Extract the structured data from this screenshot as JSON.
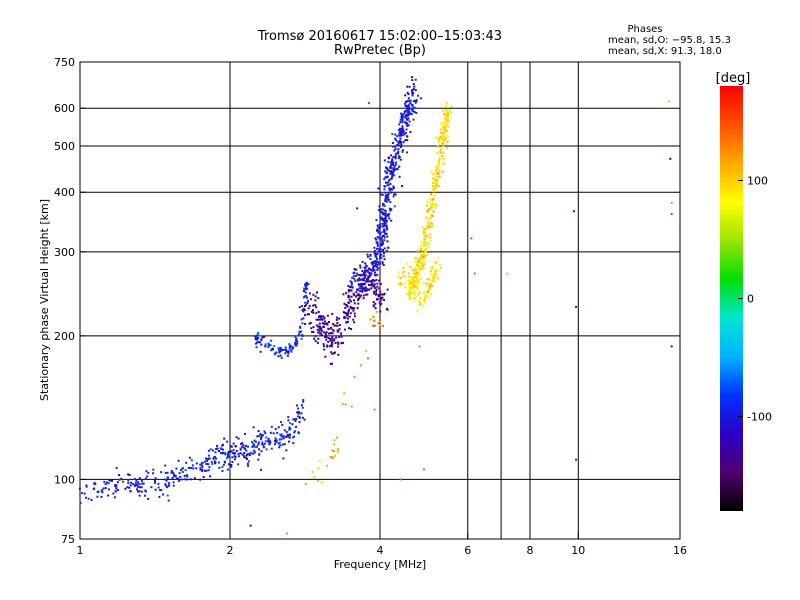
{
  "chart_data": {
    "type": "scatter",
    "title_line1": "Tromsø 20160617 15:02:00–15:03:43",
    "title_line2": "RwPretec (Bp)",
    "stats": {
      "heading": "Phases",
      "line_o": "mean, sd,O: −95.8, 15.3",
      "line_x": "mean, sd,X:  91.3, 18.0"
    },
    "xlabel": "Frequency [MHz]",
    "ylabel": "Stationary phase Virtual Height [km]",
    "x_scale": "log",
    "y_scale": "log",
    "xlim": [
      1,
      16
    ],
    "ylim": [
      75,
      750
    ],
    "x_ticks": [
      {
        "v": 1,
        "label": "1"
      },
      {
        "v": 2,
        "label": "2"
      },
      {
        "v": 4,
        "label": "4"
      },
      {
        "v": 6,
        "label": "6"
      },
      {
        "v": 8,
        "label": "8"
      },
      {
        "v": 10,
        "label": "10"
      },
      {
        "v": 16,
        "label": "16"
      }
    ],
    "x_grid": [
      1,
      2,
      4,
      6,
      7,
      8,
      10,
      16
    ],
    "y_ticks": [
      {
        "v": 75,
        "label": "75"
      },
      {
        "v": 100,
        "label": "100"
      },
      {
        "v": 200,
        "label": "200"
      },
      {
        "v": 300,
        "label": "300"
      },
      {
        "v": 400,
        "label": "400"
      },
      {
        "v": 500,
        "label": "500"
      },
      {
        "v": 600,
        "label": "600"
      },
      {
        "v": 750,
        "label": "750"
      }
    ],
    "y_grid": [
      100,
      200,
      300,
      400,
      500,
      600
    ],
    "grid": true,
    "colorbar": {
      "label": "[deg]",
      "range": [
        -180,
        180
      ],
      "ticks": [
        {
          "v": 100,
          "label": "100"
        },
        {
          "v": 0,
          "label": "0"
        },
        {
          "v": -100,
          "label": "-100"
        }
      ],
      "stops": [
        "#000000",
        "#500070",
        "#2a00c8",
        "#0033ff",
        "#00b4ff",
        "#00e6d0",
        "#00e000",
        "#9ae600",
        "#ffff00",
        "#ffa800",
        "#ff5000",
        "#ff0000"
      ]
    },
    "series": [
      {
        "segments": [
          [
            1.0,
            96,
            -95
          ],
          [
            1.1,
            95,
            -95
          ],
          [
            1.2,
            96,
            -95
          ],
          [
            1.3,
            97,
            -95
          ],
          [
            1.4,
            98,
            -95
          ],
          [
            1.5,
            100,
            -95
          ],
          [
            1.6,
            103,
            -95
          ],
          [
            1.7,
            106,
            -95
          ],
          [
            1.8,
            108,
            -95
          ],
          [
            1.9,
            112,
            -95
          ],
          [
            2.0,
            113,
            -95
          ],
          [
            2.1,
            114,
            -95
          ],
          [
            2.2,
            116,
            -95
          ],
          [
            2.3,
            119,
            -95
          ],
          [
            2.4,
            120,
            -95
          ],
          [
            2.5,
            121,
            -95
          ],
          [
            2.6,
            124,
            -95
          ],
          [
            2.7,
            130,
            -95
          ],
          [
            2.8,
            145,
            -95
          ]
        ],
        "spread": 0.035,
        "count": 420
      },
      {
        "segments": [
          [
            2.25,
            200,
            -92
          ],
          [
            2.3,
            196,
            -92
          ],
          [
            2.4,
            190,
            -92
          ],
          [
            2.5,
            186,
            -92
          ],
          [
            2.6,
            186,
            -92
          ],
          [
            2.7,
            191,
            -92
          ],
          [
            2.8,
            210,
            -92
          ],
          [
            2.83,
            240,
            -92
          ],
          [
            2.85,
            260,
            -92
          ]
        ],
        "spread": 0.015,
        "count": 120
      },
      {
        "segments": [
          [
            2.85,
            230,
            -130
          ],
          [
            2.95,
            220,
            -130
          ],
          [
            3.05,
            205,
            -130
          ],
          [
            3.15,
            200,
            -130
          ],
          [
            3.25,
            195,
            -130
          ],
          [
            3.35,
            210,
            -130
          ],
          [
            3.45,
            230,
            -130
          ],
          [
            3.55,
            240,
            -130
          ],
          [
            3.65,
            250,
            -130
          ],
          [
            3.75,
            265,
            -130
          ],
          [
            3.85,
            260,
            -130
          ],
          [
            3.95,
            240,
            -130
          ],
          [
            4.05,
            230,
            -130
          ]
        ],
        "spread": 0.045,
        "count": 330
      },
      {
        "segments": [
          [
            3.5,
            250,
            -100
          ],
          [
            3.7,
            265,
            -100
          ],
          [
            3.9,
            280,
            -100
          ],
          [
            4.0,
            300,
            -100
          ],
          [
            4.05,
            330,
            -100
          ],
          [
            4.1,
            360,
            -100
          ],
          [
            4.15,
            400,
            -100
          ],
          [
            4.2,
            440,
            -100
          ],
          [
            4.3,
            480,
            -100
          ],
          [
            4.4,
            520,
            -100
          ],
          [
            4.5,
            560,
            -100
          ],
          [
            4.6,
            610,
            -100
          ],
          [
            4.7,
            650,
            -100
          ]
        ],
        "spread": 0.04,
        "count": 520
      },
      {
        "segments": [
          [
            4.6,
            250,
            95
          ],
          [
            4.7,
            265,
            95
          ],
          [
            4.8,
            280,
            95
          ],
          [
            4.9,
            300,
            95
          ],
          [
            5.0,
            340,
            95
          ],
          [
            5.1,
            380,
            95
          ],
          [
            5.2,
            440,
            95
          ],
          [
            5.3,
            500,
            95
          ],
          [
            5.4,
            560,
            95
          ],
          [
            5.5,
            600,
            95
          ]
        ],
        "spread": 0.03,
        "count": 320
      },
      {
        "segments": [
          [
            4.4,
            270,
            88
          ],
          [
            4.6,
            250,
            88
          ],
          [
            4.8,
            240,
            88
          ],
          [
            5.0,
            250,
            88
          ],
          [
            5.1,
            265,
            88
          ],
          [
            5.2,
            270,
            88
          ]
        ],
        "spread": 0.03,
        "count": 110
      },
      {
        "segments": [
          [
            3.9,
            210,
            120
          ],
          [
            4.0,
            215,
            120
          ],
          [
            3.2,
            115,
            110
          ],
          [
            3.3,
            117,
            110
          ],
          [
            2.9,
            98,
            130
          ]
        ],
        "spread": 0.03,
        "count": 40
      }
    ],
    "outliers": [
      [
        6.1,
        320,
        150
      ],
      [
        6.2,
        270,
        140
      ],
      [
        7.2,
        270,
        110
      ],
      [
        9.8,
        365,
        -100
      ],
      [
        9.9,
        230,
        -100
      ],
      [
        9.9,
        110,
        -90
      ],
      [
        15.2,
        620,
        60
      ],
      [
        15.3,
        470,
        -120
      ],
      [
        15.4,
        360,
        -60
      ],
      [
        15.4,
        380,
        40
      ],
      [
        15.4,
        190,
        -110
      ],
      [
        4.8,
        190,
        0
      ],
      [
        3.9,
        140,
        30
      ],
      [
        4.9,
        105,
        20
      ],
      [
        2.2,
        80,
        -150
      ],
      [
        2.6,
        77,
        30
      ],
      [
        4.4,
        100,
        150
      ],
      [
        3.6,
        370,
        -100
      ],
      [
        3.8,
        615,
        170
      ]
    ]
  }
}
